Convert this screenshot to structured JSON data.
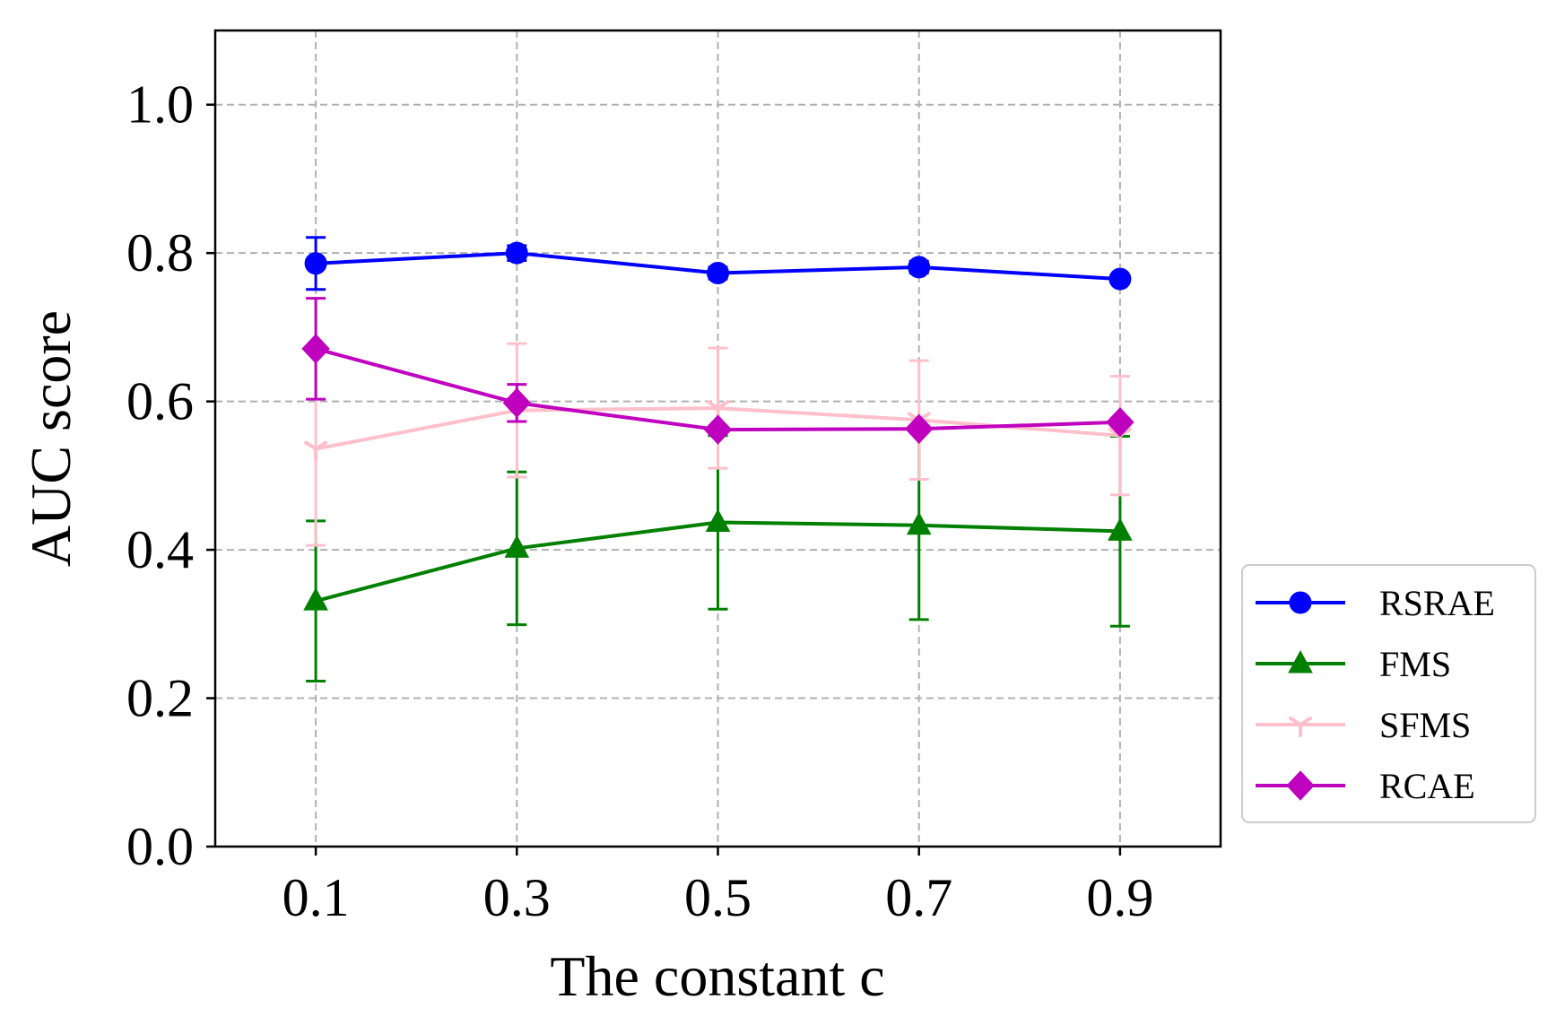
{
  "chart_data": {
    "type": "line",
    "title": "",
    "xlabel": "The constant c",
    "ylabel": "AUC score",
    "x": [
      0.1,
      0.3,
      0.5,
      0.7,
      0.9
    ],
    "xticks": [
      "0.1",
      "0.3",
      "0.5",
      "0.7",
      "0.9"
    ],
    "yticks": [
      "0.0",
      "0.2",
      "0.4",
      "0.6",
      "0.8",
      "1.0"
    ],
    "xlim": [
      0.0,
      1.0
    ],
    "ylim": [
      0.0,
      1.1
    ],
    "grid": true,
    "legend_position": "outside-right-bottom",
    "series": [
      {
        "name": "RSRAE",
        "color": "#0000ff",
        "marker": "circle",
        "values": [
          0.786,
          0.8,
          0.773,
          0.781,
          0.765
        ],
        "errors": [
          0.035,
          0.01,
          0.008,
          0.008,
          0.005
        ]
      },
      {
        "name": "FMS",
        "color": "#008000",
        "marker": "triangle",
        "values": [
          0.331,
          0.402,
          0.437,
          0.433,
          0.425
        ],
        "errors": [
          0.108,
          0.103,
          0.117,
          0.127,
          0.128
        ]
      },
      {
        "name": "SFMS",
        "color": "#ffc0cb",
        "marker": "tri_down",
        "values": [
          0.536,
          0.588,
          0.591,
          0.575,
          0.554
        ],
        "errors": [
          0.13,
          0.09,
          0.081,
          0.08,
          0.08
        ]
      },
      {
        "name": "RCAE",
        "color": "#bf00bf",
        "marker": "diamond",
        "values": [
          0.671,
          0.598,
          0.562,
          0.563,
          0.572
        ],
        "errors": [
          0.068,
          0.025,
          0.005,
          0.005,
          0.005
        ]
      }
    ]
  }
}
